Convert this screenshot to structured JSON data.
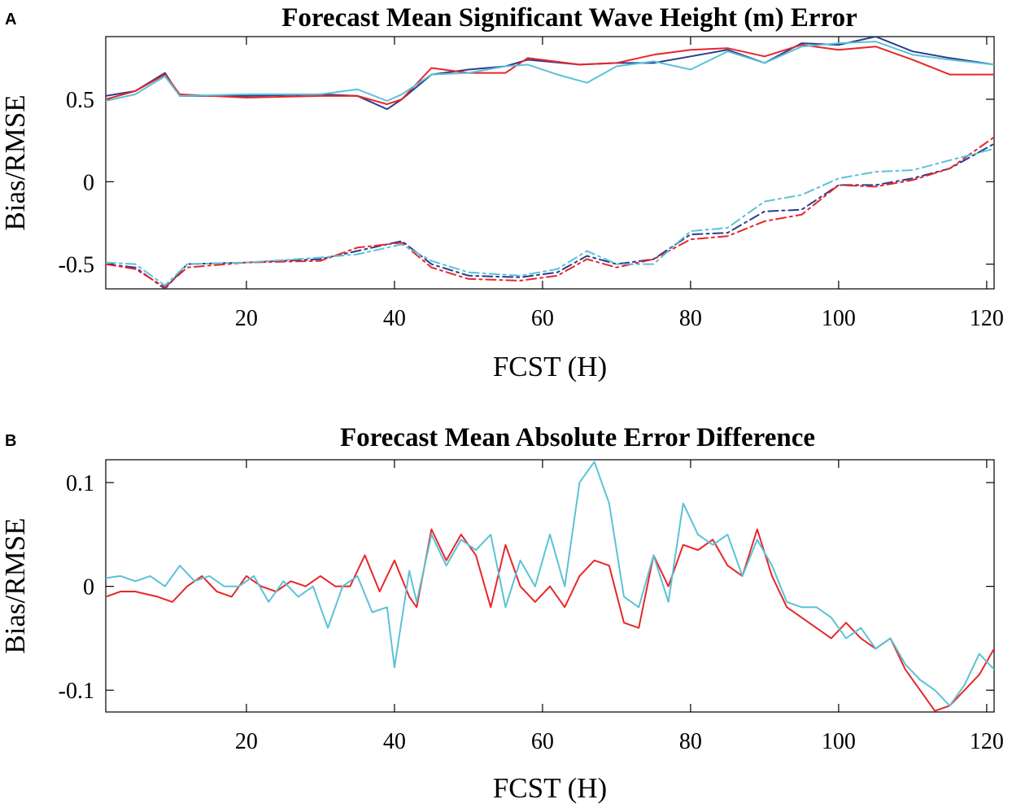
{
  "chart_data": [
    {
      "panel": "A",
      "type": "line",
      "title": "Forecast Mean Significant Wave Height (m) Error",
      "xlabel": "FCST (H)",
      "ylabel": "Bias/RMSE",
      "xlim": [
        1,
        121
      ],
      "ylim": [
        -0.65,
        0.88
      ],
      "xticks": [
        20,
        40,
        60,
        80,
        100,
        120
      ],
      "yticks": [
        -0.5,
        0,
        0.5
      ],
      "ytick_labels": [
        "-0.5",
        "0",
        "0.5"
      ],
      "grid": false,
      "series": [
        {
          "style": "solid",
          "color": "#2a3d8f",
          "x": [
            1,
            5,
            9,
            11,
            20,
            30,
            35,
            39,
            41,
            45,
            50,
            55,
            58,
            65,
            70,
            75,
            80,
            85,
            90,
            95,
            100,
            105,
            110,
            115,
            121
          ],
          "y": [
            0.52,
            0.55,
            0.66,
            0.52,
            0.52,
            0.53,
            0.52,
            0.44,
            0.5,
            0.65,
            0.68,
            0.7,
            0.74,
            0.71,
            0.72,
            0.72,
            0.76,
            0.8,
            0.72,
            0.84,
            0.83,
            0.88,
            0.79,
            0.75,
            0.71
          ]
        },
        {
          "style": "solid",
          "color": "#e8262a",
          "x": [
            1,
            5,
            9,
            11,
            20,
            30,
            35,
            39,
            41,
            45,
            50,
            55,
            58,
            65,
            70,
            75,
            80,
            85,
            90,
            95,
            100,
            105,
            110,
            115,
            121
          ],
          "y": [
            0.5,
            0.55,
            0.65,
            0.53,
            0.51,
            0.52,
            0.52,
            0.47,
            0.5,
            0.69,
            0.66,
            0.66,
            0.75,
            0.71,
            0.72,
            0.77,
            0.8,
            0.81,
            0.76,
            0.83,
            0.8,
            0.82,
            0.74,
            0.65,
            0.65
          ]
        },
        {
          "style": "solid",
          "color": "#5bc2d6",
          "x": [
            1,
            5,
            9,
            11,
            20,
            30,
            35,
            39,
            41,
            45,
            50,
            55,
            58,
            62,
            66,
            70,
            75,
            80,
            85,
            90,
            95,
            100,
            105,
            110,
            115,
            121
          ],
          "y": [
            0.49,
            0.53,
            0.64,
            0.52,
            0.53,
            0.53,
            0.56,
            0.49,
            0.53,
            0.65,
            0.66,
            0.7,
            0.71,
            0.65,
            0.6,
            0.7,
            0.73,
            0.68,
            0.79,
            0.72,
            0.82,
            0.84,
            0.85,
            0.77,
            0.74,
            0.71
          ]
        },
        {
          "style": "dashdot",
          "color": "#2a3d8f",
          "x": [
            1,
            5,
            9,
            12,
            20,
            30,
            35,
            41,
            45,
            50,
            57,
            62,
            66,
            70,
            75,
            80,
            85,
            90,
            95,
            100,
            105,
            110,
            115,
            121
          ],
          "y": [
            -0.5,
            -0.52,
            -0.65,
            -0.5,
            -0.49,
            -0.47,
            -0.42,
            -0.36,
            -0.5,
            -0.57,
            -0.58,
            -0.55,
            -0.45,
            -0.5,
            -0.47,
            -0.32,
            -0.31,
            -0.18,
            -0.17,
            -0.02,
            -0.02,
            0.02,
            0.08,
            0.23
          ]
        },
        {
          "style": "dashdot",
          "color": "#e8262a",
          "x": [
            1,
            5,
            9,
            12,
            20,
            30,
            35,
            41,
            45,
            50,
            57,
            62,
            66,
            70,
            75,
            80,
            85,
            90,
            95,
            100,
            105,
            110,
            115,
            121
          ],
          "y": [
            -0.5,
            -0.53,
            -0.64,
            -0.52,
            -0.49,
            -0.48,
            -0.4,
            -0.37,
            -0.52,
            -0.59,
            -0.6,
            -0.57,
            -0.47,
            -0.52,
            -0.47,
            -0.35,
            -0.33,
            -0.24,
            -0.2,
            -0.02,
            -0.03,
            0.01,
            0.08,
            0.27
          ]
        },
        {
          "style": "dashdot",
          "color": "#5bc2d6",
          "x": [
            1,
            5,
            9,
            12,
            20,
            30,
            35,
            41,
            45,
            50,
            57,
            62,
            66,
            70,
            75,
            80,
            85,
            90,
            95,
            100,
            105,
            110,
            115,
            121
          ],
          "y": [
            -0.49,
            -0.5,
            -0.63,
            -0.5,
            -0.49,
            -0.46,
            -0.44,
            -0.38,
            -0.48,
            -0.55,
            -0.57,
            -0.53,
            -0.42,
            -0.5,
            -0.5,
            -0.3,
            -0.28,
            -0.12,
            -0.08,
            0.02,
            0.06,
            0.07,
            0.13,
            0.2
          ]
        }
      ]
    },
    {
      "panel": "B",
      "type": "line",
      "title": "Forecast Mean Absolute Error Difference",
      "xlabel": "FCST (H)",
      "ylabel": "Bias/RMSE",
      "xlim": [
        1,
        121
      ],
      "ylim": [
        -0.121,
        0.122
      ],
      "xticks": [
        20,
        40,
        60,
        80,
        100,
        120
      ],
      "yticks": [
        -0.1,
        0,
        0.1
      ],
      "ytick_labels": [
        "-0.1",
        "0",
        "0.1"
      ],
      "grid": false,
      "series": [
        {
          "style": "solid",
          "color": "#e8262a",
          "x": [
            1,
            3,
            5,
            8,
            10,
            12,
            14,
            16,
            18,
            20,
            22,
            24,
            26,
            28,
            30,
            32,
            34,
            36,
            38,
            40,
            42,
            43,
            45,
            47,
            49,
            51,
            53,
            55,
            57,
            59,
            61,
            63,
            65,
            67,
            69,
            71,
            73,
            75,
            77,
            79,
            81,
            83,
            85,
            87,
            89,
            91,
            93,
            95,
            97,
            99,
            101,
            103,
            105,
            107,
            109,
            111,
            113,
            115,
            117,
            119,
            121
          ],
          "y": [
            -0.01,
            -0.005,
            -0.005,
            -0.01,
            -0.015,
            0.0,
            0.01,
            -0.005,
            -0.01,
            0.01,
            0.0,
            -0.005,
            0.005,
            0.0,
            0.01,
            0.0,
            0.0,
            0.03,
            -0.005,
            0.025,
            -0.01,
            -0.02,
            0.055,
            0.025,
            0.05,
            0.03,
            -0.02,
            0.04,
            0.0,
            -0.015,
            0.0,
            -0.02,
            0.01,
            0.025,
            0.02,
            -0.035,
            -0.04,
            0.03,
            0.0,
            0.04,
            0.035,
            0.045,
            0.02,
            0.01,
            0.055,
            0.01,
            -0.02,
            -0.03,
            -0.04,
            -0.05,
            -0.035,
            -0.05,
            -0.06,
            -0.05,
            -0.08,
            -0.1,
            -0.12,
            -0.115,
            -0.1,
            -0.085,
            -0.06
          ]
        },
        {
          "style": "solid",
          "color": "#5bc2d6",
          "x": [
            1,
            3,
            5,
            7,
            9,
            11,
            13,
            15,
            17,
            19,
            21,
            23,
            25,
            27,
            29,
            31,
            33,
            35,
            37,
            39,
            40,
            42,
            43,
            45,
            47,
            49,
            51,
            53,
            55,
            57,
            59,
            61,
            63,
            65,
            67,
            69,
            71,
            73,
            75,
            77,
            79,
            81,
            83,
            85,
            87,
            89,
            91,
            93,
            95,
            97,
            99,
            101,
            103,
            105,
            107,
            109,
            111,
            113,
            115,
            117,
            119,
            121
          ],
          "y": [
            0.008,
            0.01,
            0.005,
            0.01,
            0.0,
            0.02,
            0.005,
            0.01,
            0.0,
            0.0,
            0.01,
            -0.015,
            0.005,
            -0.01,
            0.0,
            -0.04,
            0.0,
            0.01,
            -0.025,
            -0.02,
            -0.078,
            0.015,
            -0.015,
            0.05,
            0.02,
            0.045,
            0.035,
            0.05,
            -0.02,
            0.025,
            0.0,
            0.05,
            0.0,
            0.1,
            0.12,
            0.08,
            -0.01,
            -0.02,
            0.03,
            -0.015,
            0.08,
            0.05,
            0.04,
            0.05,
            0.01,
            0.045,
            0.02,
            -0.015,
            -0.02,
            -0.02,
            -0.03,
            -0.05,
            -0.04,
            -0.06,
            -0.05,
            -0.075,
            -0.09,
            -0.1,
            -0.115,
            -0.095,
            -0.065,
            -0.08
          ]
        }
      ]
    }
  ]
}
